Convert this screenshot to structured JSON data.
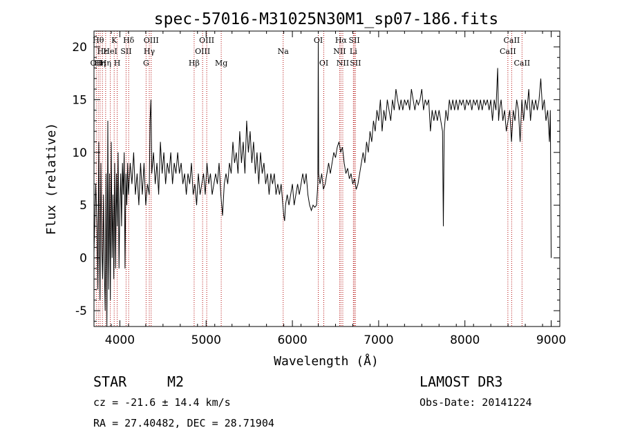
{
  "chart_data": {
    "type": "line",
    "title": "spec-57016-M31025N30M1_sp07-186.fits",
    "xlabel": "Wavelength (Å)",
    "ylabel": "Flux (relative)",
    "xlim": [
      3700,
      9100
    ],
    "ylim": [
      -6.5,
      21.5
    ],
    "xticks": [
      4000,
      5000,
      6000,
      7000,
      8000,
      9000
    ],
    "yticks": [
      -5,
      0,
      5,
      10,
      15,
      20
    ],
    "series": [
      {
        "name": "flux",
        "points": [
          [
            3700,
            0.5
          ],
          [
            3720,
            7
          ],
          [
            3735,
            3
          ],
          [
            3745,
            -3
          ],
          [
            3755,
            11
          ],
          [
            3762,
            2
          ],
          [
            3770,
            -4
          ],
          [
            3780,
            9
          ],
          [
            3790,
            1
          ],
          [
            3800,
            -2
          ],
          [
            3810,
            6
          ],
          [
            3820,
            -1
          ],
          [
            3830,
            -5
          ],
          [
            3840,
            8
          ],
          [
            3850,
            -6.5
          ],
          [
            3860,
            13
          ],
          [
            3870,
            -3
          ],
          [
            3880,
            8
          ],
          [
            3890,
            -4
          ],
          [
            3900,
            11
          ],
          [
            3910,
            0
          ],
          [
            3920,
            6
          ],
          [
            3930,
            -2
          ],
          [
            3940,
            9
          ],
          [
            3950,
            -1
          ],
          [
            3960,
            8
          ],
          [
            3970,
            3
          ],
          [
            3980,
            10
          ],
          [
            3990,
            -1
          ],
          [
            4000,
            5
          ],
          [
            4010,
            8
          ],
          [
            4020,
            3
          ],
          [
            4030,
            9
          ],
          [
            4040,
            6
          ],
          [
            4050,
            10
          ],
          [
            4060,
            -1
          ],
          [
            4070,
            8
          ],
          [
            4080,
            5
          ],
          [
            4090,
            9
          ],
          [
            4100,
            6
          ],
          [
            4120,
            9
          ],
          [
            4140,
            7
          ],
          [
            4160,
            10
          ],
          [
            4180,
            6
          ],
          [
            4200,
            8
          ],
          [
            4220,
            5
          ],
          [
            4240,
            9
          ],
          [
            4260,
            6
          ],
          [
            4280,
            9
          ],
          [
            4300,
            5
          ],
          [
            4320,
            7
          ],
          [
            4340,
            6
          ],
          [
            4350,
            13
          ],
          [
            4360,
            15
          ],
          [
            4370,
            8
          ],
          [
            4390,
            10
          ],
          [
            4410,
            7
          ],
          [
            4430,
            9
          ],
          [
            4450,
            6
          ],
          [
            4470,
            11
          ],
          [
            4490,
            8
          ],
          [
            4510,
            10
          ],
          [
            4530,
            7
          ],
          [
            4550,
            9
          ],
          [
            4570,
            8
          ],
          [
            4590,
            10
          ],
          [
            4610,
            7
          ],
          [
            4630,
            9
          ],
          [
            4650,
            8
          ],
          [
            4670,
            10
          ],
          [
            4690,
            8
          ],
          [
            4710,
            9
          ],
          [
            4730,
            7
          ],
          [
            4750,
            8
          ],
          [
            4770,
            6
          ],
          [
            4790,
            8
          ],
          [
            4810,
            7
          ],
          [
            4830,
            9
          ],
          [
            4850,
            6
          ],
          [
            4870,
            7
          ],
          [
            4890,
            5
          ],
          [
            4910,
            8
          ],
          [
            4930,
            6
          ],
          [
            4950,
            7
          ],
          [
            4970,
            8
          ],
          [
            4990,
            6
          ],
          [
            5010,
            9
          ],
          [
            5030,
            7
          ],
          [
            5050,
            8
          ],
          [
            5070,
            6
          ],
          [
            5090,
            7
          ],
          [
            5110,
            8
          ],
          [
            5130,
            7
          ],
          [
            5150,
            9
          ],
          [
            5170,
            6
          ],
          [
            5190,
            4
          ],
          [
            5210,
            7
          ],
          [
            5230,
            8
          ],
          [
            5250,
            7
          ],
          [
            5270,
            9
          ],
          [
            5290,
            8
          ],
          [
            5310,
            11
          ],
          [
            5330,
            9
          ],
          [
            5350,
            10
          ],
          [
            5370,
            8
          ],
          [
            5390,
            12
          ],
          [
            5410,
            9
          ],
          [
            5430,
            11
          ],
          [
            5450,
            8
          ],
          [
            5470,
            13
          ],
          [
            5490,
            10
          ],
          [
            5510,
            12
          ],
          [
            5530,
            9
          ],
          [
            5550,
            11
          ],
          [
            5570,
            8
          ],
          [
            5590,
            10
          ],
          [
            5610,
            7
          ],
          [
            5630,
            10
          ],
          [
            5650,
            8
          ],
          [
            5670,
            9
          ],
          [
            5690,
            7
          ],
          [
            5710,
            8
          ],
          [
            5730,
            6
          ],
          [
            5750,
            8
          ],
          [
            5770,
            7
          ],
          [
            5790,
            8
          ],
          [
            5810,
            6
          ],
          [
            5830,
            7
          ],
          [
            5850,
            6
          ],
          [
            5870,
            7
          ],
          [
            5890,
            5
          ],
          [
            5900,
            4
          ],
          [
            5910,
            3.5
          ],
          [
            5920,
            5
          ],
          [
            5940,
            6
          ],
          [
            5960,
            5
          ],
          [
            5980,
            6
          ],
          [
            6000,
            7
          ],
          [
            6020,
            5
          ],
          [
            6040,
            6
          ],
          [
            6060,
            7
          ],
          [
            6080,
            6
          ],
          [
            6100,
            7
          ],
          [
            6120,
            8
          ],
          [
            6140,
            7
          ],
          [
            6160,
            8
          ],
          [
            6180,
            6
          ],
          [
            6200,
            5
          ],
          [
            6220,
            4.5
          ],
          [
            6240,
            5
          ],
          [
            6260,
            4.8
          ],
          [
            6280,
            5
          ],
          [
            6295,
            7
          ],
          [
            6300,
            20.5
          ],
          [
            6305,
            8
          ],
          [
            6320,
            7
          ],
          [
            6340,
            8
          ],
          [
            6360,
            6.5
          ],
          [
            6380,
            7
          ],
          [
            6400,
            8
          ],
          [
            6420,
            9
          ],
          [
            6440,
            8
          ],
          [
            6460,
            9
          ],
          [
            6480,
            10
          ],
          [
            6500,
            9.5
          ],
          [
            6520,
            10.5
          ],
          [
            6540,
            11
          ],
          [
            6560,
            10
          ],
          [
            6580,
            10.5
          ],
          [
            6600,
            9
          ],
          [
            6620,
            8
          ],
          [
            6640,
            8.5
          ],
          [
            6660,
            7.5
          ],
          [
            6680,
            8
          ],
          [
            6700,
            7
          ],
          [
            6720,
            7.5
          ],
          [
            6740,
            6.5
          ],
          [
            6760,
            7
          ],
          [
            6780,
            8
          ],
          [
            6800,
            9
          ],
          [
            6820,
            10
          ],
          [
            6840,
            9
          ],
          [
            6860,
            11
          ],
          [
            6880,
            10
          ],
          [
            6900,
            12
          ],
          [
            6920,
            11
          ],
          [
            6940,
            13
          ],
          [
            6960,
            12
          ],
          [
            6980,
            14
          ],
          [
            7000,
            13
          ],
          [
            7020,
            15
          ],
          [
            7040,
            12
          ],
          [
            7060,
            14
          ],
          [
            7080,
            13
          ],
          [
            7100,
            15
          ],
          [
            7120,
            14
          ],
          [
            7140,
            13
          ],
          [
            7160,
            15
          ],
          [
            7180,
            14
          ],
          [
            7200,
            16
          ],
          [
            7220,
            15
          ],
          [
            7240,
            14
          ],
          [
            7260,
            15
          ],
          [
            7280,
            14
          ],
          [
            7300,
            15
          ],
          [
            7320,
            14.5
          ],
          [
            7340,
            15
          ],
          [
            7360,
            14
          ],
          [
            7380,
            16
          ],
          [
            7400,
            15
          ],
          [
            7420,
            14
          ],
          [
            7440,
            15
          ],
          [
            7460,
            14.5
          ],
          [
            7480,
            15
          ],
          [
            7500,
            16
          ],
          [
            7520,
            14
          ],
          [
            7540,
            15
          ],
          [
            7560,
            14.5
          ],
          [
            7580,
            15
          ],
          [
            7600,
            12
          ],
          [
            7620,
            14
          ],
          [
            7640,
            13
          ],
          [
            7660,
            14
          ],
          [
            7680,
            13
          ],
          [
            7700,
            14
          ],
          [
            7720,
            13
          ],
          [
            7740,
            12
          ],
          [
            7750,
            3
          ],
          [
            7760,
            12
          ],
          [
            7780,
            14
          ],
          [
            7800,
            13
          ],
          [
            7820,
            15
          ],
          [
            7840,
            14
          ],
          [
            7860,
            15
          ],
          [
            7880,
            14
          ],
          [
            7900,
            15
          ],
          [
            7920,
            14
          ],
          [
            7940,
            15
          ],
          [
            7960,
            14.5
          ],
          [
            7980,
            15
          ],
          [
            8000,
            14
          ],
          [
            8020,
            15
          ],
          [
            8040,
            14.5
          ],
          [
            8060,
            15
          ],
          [
            8080,
            14
          ],
          [
            8100,
            15
          ],
          [
            8120,
            14.5
          ],
          [
            8140,
            15
          ],
          [
            8160,
            14
          ],
          [
            8180,
            15
          ],
          [
            8200,
            14
          ],
          [
            8220,
            15
          ],
          [
            8240,
            14.5
          ],
          [
            8260,
            15
          ],
          [
            8280,
            14
          ],
          [
            8300,
            15
          ],
          [
            8320,
            13
          ],
          [
            8340,
            15
          ],
          [
            8360,
            14
          ],
          [
            8380,
            18
          ],
          [
            8390,
            13
          ],
          [
            8400,
            14
          ],
          [
            8420,
            15
          ],
          [
            8440,
            13
          ],
          [
            8460,
            14
          ],
          [
            8480,
            12
          ],
          [
            8500,
            13
          ],
          [
            8520,
            14
          ],
          [
            8540,
            11
          ],
          [
            8560,
            14
          ],
          [
            8580,
            13
          ],
          [
            8600,
            15
          ],
          [
            8620,
            14
          ],
          [
            8640,
            11
          ],
          [
            8660,
            15
          ],
          [
            8680,
            13
          ],
          [
            8700,
            15
          ],
          [
            8720,
            14
          ],
          [
            8740,
            16
          ],
          [
            8760,
            13
          ],
          [
            8780,
            15
          ],
          [
            8800,
            14
          ],
          [
            8820,
            15
          ],
          [
            8840,
            14
          ],
          [
            8860,
            15
          ],
          [
            8880,
            17
          ],
          [
            8900,
            14
          ],
          [
            8920,
            15
          ],
          [
            8940,
            13
          ],
          [
            8960,
            14
          ],
          [
            8980,
            11
          ],
          [
            8990,
            14
          ],
          [
            9000,
            0
          ]
        ]
      }
    ],
    "lines": [
      {
        "wl": 3727,
        "label": "OII",
        "row": 2
      },
      {
        "wl": 3750,
        "label": "Hθ",
        "row": 0
      },
      {
        "wl": 3771,
        "label": "Hη",
        "row": 2
      },
      {
        "wl": 3798,
        "label": "Hε",
        "row": 1
      },
      {
        "wl": 3835,
        "label": "Hη",
        "row": 2
      },
      {
        "wl": 3889,
        "label": "HeI",
        "row": 1
      },
      {
        "wl": 3934,
        "label": "K",
        "row": 0
      },
      {
        "wl": 3969,
        "label": "H",
        "row": 2
      },
      {
        "wl": 4072,
        "label": "SII",
        "row": 1
      },
      {
        "wl": 4102,
        "label": "Hδ",
        "row": 0
      },
      {
        "wl": 4304,
        "label": "G",
        "row": 2
      },
      {
        "wl": 4341,
        "label": "Hγ",
        "row": 1
      },
      {
        "wl": 4363,
        "label": "OIII",
        "row": 0
      },
      {
        "wl": 4861,
        "label": "Hβ",
        "row": 2
      },
      {
        "wl": 4959,
        "label": "OIII",
        "row": 1
      },
      {
        "wl": 5007,
        "label": "OIII",
        "row": 0
      },
      {
        "wl": 5175,
        "label": "Mg",
        "row": 2
      },
      {
        "wl": 5893,
        "label": "Na",
        "row": 1
      },
      {
        "wl": 6300,
        "label": "OI",
        "row": 0
      },
      {
        "wl": 6364,
        "label": "OI",
        "row": 2
      },
      {
        "wl": 6548,
        "label": "NII",
        "row": 1
      },
      {
        "wl": 6563,
        "label": "Hα",
        "row": 0
      },
      {
        "wl": 6584,
        "label": "NII",
        "row": 2
      },
      {
        "wl": 6707,
        "label": "Li",
        "row": 1
      },
      {
        "wl": 6717,
        "label": "SII",
        "row": 0
      },
      {
        "wl": 6731,
        "label": "SII",
        "row": 2
      },
      {
        "wl": 8498,
        "label": "CaII",
        "row": 1
      },
      {
        "wl": 8542,
        "label": "CaII",
        "row": 0
      },
      {
        "wl": 8662,
        "label": "CaII",
        "row": 2
      }
    ]
  },
  "info": {
    "class": "STAR",
    "subclass": "M2",
    "survey": "LAMOST DR3",
    "cz": "cz = -21.6 ± 14.4 km/s",
    "obs_date": "Obs-Date: 20141224",
    "coords": "RA =  27.40482, DEC =  28.71904"
  },
  "colors": {
    "axis": "#000000",
    "spectrum": "#000000",
    "line_marker": "#b00000"
  }
}
